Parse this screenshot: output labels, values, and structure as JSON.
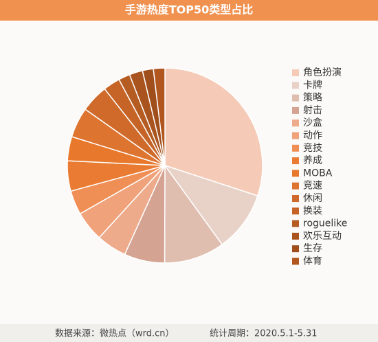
{
  "chart_data": {
    "type": "pie",
    "title": "手游热度TOP50类型占比",
    "categories": [
      "角色扮演",
      "卡牌",
      "策略",
      "射击",
      "沙盒",
      "动作",
      "竞技",
      "养成",
      "MOBA",
      "竞速",
      "休闲",
      "换装",
      "roguelike",
      "欢乐互动",
      "生存",
      "体育"
    ],
    "values": [
      30,
      10,
      10,
      6.7,
      5,
      5,
      4,
      5,
      4,
      5,
      4.6,
      2.8,
      1.9,
      2.2,
      1.8,
      1.9
    ],
    "colors": [
      "#f5cbb7",
      "#e8d2c8",
      "#dfbeb0",
      "#d4a392",
      "#eeab8b",
      "#f0a27a",
      "#ef8f55",
      "#ea7b32",
      "#e8782c",
      "#dd7430",
      "#d06a2a",
      "#c56426",
      "#b45c22",
      "#a9541f",
      "#9f4e1c",
      "#b0561e"
    ],
    "legend": "right",
    "source": "数据来源：微热点（wrd.cn）",
    "period": "统计周期：2020.5.1-5.31"
  }
}
